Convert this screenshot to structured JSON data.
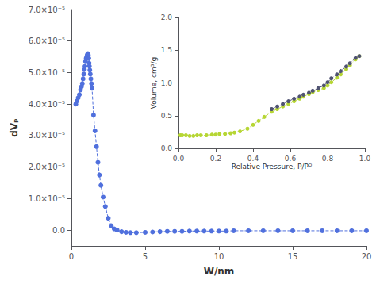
{
  "chart_data": [
    {
      "type": "line",
      "marker": "circle",
      "line_style": "dashed",
      "xlabel": "W/nm",
      "ylabel": "dVₚ",
      "x": [
        0.3,
        0.38,
        0.46,
        0.54,
        0.62,
        0.68,
        0.74,
        0.79,
        0.84,
        0.88,
        0.92,
        0.96,
        1.0,
        1.04,
        1.07,
        1.1,
        1.12,
        1.15,
        1.18,
        1.2,
        1.22,
        1.25,
        1.28,
        1.32,
        1.36,
        1.4,
        1.5,
        1.6,
        1.7,
        1.8,
        1.9,
        2.0,
        2.15,
        2.3,
        2.5,
        2.7,
        2.9,
        3.1,
        3.4,
        3.7,
        4.0,
        4.4,
        5.0,
        5.5,
        6.0,
        6.5,
        7.0,
        7.5,
        8.0,
        8.5,
        9.0,
        9.5,
        10.0,
        10.5,
        11.0,
        12.0,
        13.0,
        14.0,
        15.0,
        16.0,
        17.0,
        18.0,
        19.0,
        20.0
      ],
      "values": [
        4e-05,
        4.1e-05,
        4.2e-05,
        4.3e-05,
        4.45e-05,
        4.55e-05,
        4.65e-05,
        4.8e-05,
        4.95e-05,
        5.1e-05,
        5.2e-05,
        5.35e-05,
        5.45e-05,
        5.5e-05,
        5.55e-05,
        5.58e-05,
        5.6e-05,
        5.55e-05,
        5.45e-05,
        5.3e-05,
        5.2e-05,
        5.08e-05,
        4.95e-05,
        4.8e-05,
        4.65e-05,
        4.5e-05,
        3.65e-05,
        3.15e-05,
        2.65e-05,
        2.15e-05,
        1.75e-05,
        1.42e-05,
        1.05e-05,
        7.5e-06,
        3.8e-06,
        1.4e-06,
        4e-07,
        0.0,
        -5e-07,
        -7e-07,
        -8e-07,
        -8e-07,
        -7e-07,
        -6e-07,
        -5e-07,
        -4e-07,
        -4e-07,
        -4e-07,
        -3e-07,
        -3e-07,
        -3e-07,
        -3e-07,
        -3e-07,
        -3e-07,
        -2e-07,
        -2e-07,
        -2e-07,
        -2e-07,
        -2e-07,
        -2e-07,
        -2e-07,
        -2e-07,
        -2e-07,
        -2e-07
      ],
      "xlim": [
        0,
        20
      ],
      "ylim": [
        -5e-06,
        7e-05
      ],
      "xticks": [
        0,
        5,
        10,
        15,
        20
      ],
      "yticks": [
        {
          "value": 0.0,
          "label": "0.0"
        },
        {
          "value": 1e-05,
          "label": "1.0×10⁻⁵"
        },
        {
          "value": 2e-05,
          "label": "2.0×10⁻⁵"
        },
        {
          "value": 3e-05,
          "label": "3.0×10⁻⁵"
        },
        {
          "value": 4e-05,
          "label": "4.0×10⁻⁵"
        },
        {
          "value": 5e-05,
          "label": "5.0×10⁻⁵"
        },
        {
          "value": 6e-05,
          "label": "6.0×10⁻⁵"
        },
        {
          "value": 7e-05,
          "label": "7.0×10⁻⁵"
        }
      ],
      "grid": false
    },
    {
      "type": "line",
      "marker": "circle",
      "line_style": "dashed",
      "xlabel": "Relative Pressure, P/Pᴼ",
      "ylabel": "Volume, cm³/g",
      "series": [
        {
          "x": [
            0.01,
            0.02,
            0.04,
            0.06,
            0.08,
            0.1,
            0.12,
            0.15,
            0.18,
            0.2,
            0.22,
            0.25,
            0.28,
            0.3,
            0.33,
            0.37,
            0.4,
            0.43,
            0.46,
            0.5,
            0.53,
            0.56,
            0.59,
            0.62,
            0.65,
            0.67,
            0.7,
            0.72,
            0.75,
            0.78,
            0.8,
            0.82,
            0.85,
            0.87,
            0.9,
            0.92,
            0.95,
            0.97
          ],
          "values": [
            0.2,
            0.2,
            0.2,
            0.19,
            0.19,
            0.2,
            0.2,
            0.2,
            0.21,
            0.21,
            0.22,
            0.22,
            0.23,
            0.24,
            0.26,
            0.3,
            0.36,
            0.42,
            0.48,
            0.56,
            0.6,
            0.64,
            0.68,
            0.72,
            0.76,
            0.79,
            0.83,
            0.86,
            0.89,
            0.92,
            0.96,
            1.01,
            1.08,
            1.13,
            1.21,
            1.27,
            1.36,
            1.41
          ]
        },
        {
          "x": [
            0.97,
            0.95,
            0.92,
            0.9,
            0.87,
            0.85,
            0.82,
            0.8,
            0.78,
            0.75,
            0.72,
            0.7,
            0.67,
            0.65,
            0.62,
            0.59,
            0.56,
            0.53,
            0.5
          ],
          "values": [
            1.41,
            1.38,
            1.3,
            1.25,
            1.18,
            1.13,
            1.07,
            1.01,
            0.96,
            0.92,
            0.88,
            0.85,
            0.82,
            0.79,
            0.76,
            0.72,
            0.68,
            0.64,
            0.6
          ]
        }
      ],
      "xlim": [
        0.0,
        1.0
      ],
      "ylim": [
        0.0,
        2.0
      ],
      "xticks": [
        {
          "value": 0.0,
          "label": "0.0"
        },
        0.2,
        0.4,
        0.6,
        0.8,
        {
          "value": 1.0,
          "label": "1.0"
        }
      ],
      "yticks": [
        {
          "value": 0.0,
          "label": "0.0"
        },
        0.5,
        {
          "value": 1.0,
          "label": "1.0"
        },
        1.5,
        {
          "value": 2.0,
          "label": "2.0"
        }
      ],
      "grid": false
    }
  ]
}
